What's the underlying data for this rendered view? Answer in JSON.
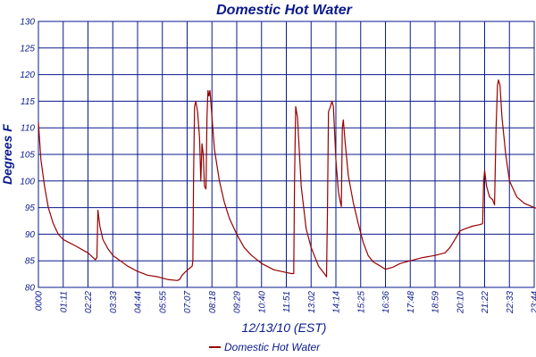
{
  "chart_data": {
    "type": "line",
    "title": "Domestic Hot Water",
    "xlabel": "12/13/10 (EST)",
    "ylabel": "Degrees F",
    "ylim": [
      80,
      130
    ],
    "yticks": [
      80,
      85,
      90,
      95,
      100,
      105,
      110,
      115,
      120,
      125,
      130
    ],
    "xticks": [
      "0000",
      "01:11",
      "02:22",
      "03:33",
      "04:44",
      "05:55",
      "07:07",
      "08:18",
      "09:29",
      "10:40",
      "11:51",
      "13:02",
      "14:14",
      "15:25",
      "16:36",
      "17:48",
      "18:59",
      "20:10",
      "21:22",
      "22:33",
      "23:44"
    ],
    "grid": true,
    "legend_position": "bottom-center",
    "colors": {
      "series": "#990000",
      "grid": "#0a1a8c",
      "text": "#0a1a8c"
    },
    "series": [
      {
        "name": "Domestic Hot Water",
        "points": [
          [
            0.0,
            111
          ],
          [
            0.1,
            104
          ],
          [
            0.25,
            99
          ],
          [
            0.4,
            95
          ],
          [
            0.6,
            92
          ],
          [
            0.8,
            90
          ],
          [
            1.0,
            89
          ],
          [
            1.2,
            88.5
          ],
          [
            1.5,
            87.8
          ],
          [
            1.8,
            87
          ],
          [
            2.0,
            86.5
          ],
          [
            2.2,
            85.6
          ],
          [
            2.3,
            85.2
          ],
          [
            2.36,
            85.6
          ],
          [
            2.4,
            94.5
          ],
          [
            2.48,
            91.5
          ],
          [
            2.6,
            89
          ],
          [
            2.8,
            87.3
          ],
          [
            3.0,
            86
          ],
          [
            3.3,
            85
          ],
          [
            3.6,
            84
          ],
          [
            4.0,
            83
          ],
          [
            4.4,
            82.3
          ],
          [
            4.8,
            82
          ],
          [
            5.2,
            81.5
          ],
          [
            5.6,
            81.3
          ],
          [
            5.7,
            81.5
          ],
          [
            5.8,
            82.3
          ],
          [
            5.95,
            83
          ],
          [
            6.1,
            83.6
          ],
          [
            6.2,
            84
          ],
          [
            6.23,
            85
          ],
          [
            6.26,
            101
          ],
          [
            6.3,
            114
          ],
          [
            6.35,
            115
          ],
          [
            6.42,
            113
          ],
          [
            6.5,
            108
          ],
          [
            6.55,
            100
          ],
          [
            6.6,
            107
          ],
          [
            6.65,
            105
          ],
          [
            6.7,
            99
          ],
          [
            6.76,
            98.5
          ],
          [
            6.8,
            112
          ],
          [
            6.84,
            117
          ],
          [
            6.88,
            116
          ],
          [
            6.92,
            117
          ],
          [
            7.0,
            112
          ],
          [
            7.1,
            106
          ],
          [
            7.3,
            100
          ],
          [
            7.5,
            96
          ],
          [
            7.7,
            93
          ],
          [
            8.0,
            90
          ],
          [
            8.3,
            87.5
          ],
          [
            8.6,
            86
          ],
          [
            9.0,
            84.5
          ],
          [
            9.5,
            83.3
          ],
          [
            10.0,
            82.8
          ],
          [
            10.2,
            82.6
          ],
          [
            10.3,
            82.6
          ],
          [
            10.33,
            100
          ],
          [
            10.38,
            114
          ],
          [
            10.45,
            112
          ],
          [
            10.6,
            99
          ],
          [
            10.8,
            91
          ],
          [
            11.0,
            87.5
          ],
          [
            11.3,
            84
          ],
          [
            11.55,
            82.5
          ],
          [
            11.62,
            82
          ],
          [
            11.66,
            95
          ],
          [
            11.7,
            113
          ],
          [
            11.78,
            114
          ],
          [
            11.84,
            115
          ],
          [
            11.9,
            114
          ],
          [
            12.0,
            104
          ],
          [
            12.1,
            98
          ],
          [
            12.18,
            96
          ],
          [
            12.22,
            95.2
          ],
          [
            12.26,
            110
          ],
          [
            12.3,
            111.5
          ],
          [
            12.38,
            107
          ],
          [
            12.5,
            101
          ],
          [
            12.7,
            96
          ],
          [
            12.9,
            92
          ],
          [
            13.1,
            88.5
          ],
          [
            13.3,
            86
          ],
          [
            13.5,
            84.8
          ],
          [
            13.8,
            84
          ],
          [
            14.0,
            83.4
          ],
          [
            14.3,
            83.8
          ],
          [
            14.6,
            84.5
          ],
          [
            15.0,
            85
          ],
          [
            15.5,
            85.6
          ],
          [
            16.0,
            86
          ],
          [
            16.4,
            86.5
          ],
          [
            16.6,
            87.5
          ],
          [
            16.8,
            89
          ],
          [
            17.0,
            90.6
          ],
          [
            17.2,
            91
          ],
          [
            17.5,
            91.5
          ],
          [
            17.8,
            91.8
          ],
          [
            17.92,
            92
          ],
          [
            17.96,
            100
          ],
          [
            18.0,
            102
          ],
          [
            18.08,
            99
          ],
          [
            18.2,
            97
          ],
          [
            18.32,
            96.5
          ],
          [
            18.4,
            95.5
          ],
          [
            18.46,
            110
          ],
          [
            18.52,
            118
          ],
          [
            18.56,
            119
          ],
          [
            18.62,
            118
          ],
          [
            18.7,
            112
          ],
          [
            18.85,
            105
          ],
          [
            19.0,
            100
          ],
          [
            19.3,
            97
          ],
          [
            19.6,
            95.8
          ],
          [
            20.0,
            95
          ],
          [
            20.3,
            94.6
          ],
          [
            20.45,
            94.4
          ],
          [
            20.52,
            94.5
          ],
          [
            20.58,
            105
          ],
          [
            20.65,
            103
          ],
          [
            20.8,
            100
          ],
          [
            21.0,
            98
          ],
          [
            21.2,
            97
          ],
          [
            21.5,
            96
          ],
          [
            21.72,
            95.5
          ],
          [
            21.9,
            96
          ],
          [
            22.0,
            97
          ],
          [
            22.2,
            97.3
          ],
          [
            22.4,
            97
          ],
          [
            22.6,
            97
          ],
          [
            22.72,
            97
          ],
          [
            22.78,
            100
          ],
          [
            22.9,
            100.5
          ],
          [
            23.1,
            99
          ],
          [
            23.35,
            98
          ],
          [
            23.42,
            97
          ],
          [
            23.45,
            108
          ],
          [
            23.5,
            123
          ],
          [
            23.58,
            120
          ],
          [
            23.7,
            112
          ],
          [
            23.85,
            104
          ],
          [
            23.92,
            102.5
          ],
          [
            23.96,
            100
          ],
          [
            24.0,
            101
          ]
        ]
      }
    ]
  }
}
